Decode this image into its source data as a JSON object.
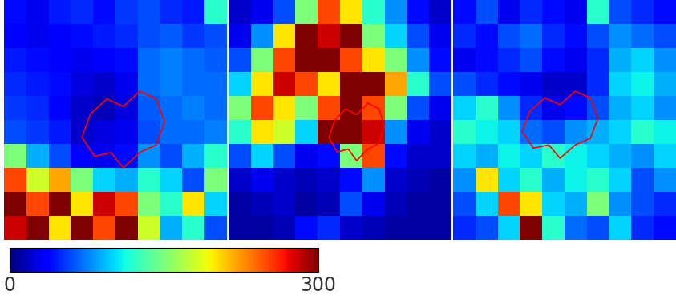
{
  "chart_data": {
    "type": "heatmap",
    "tick_labels": false,
    "panels": [
      {
        "cells": [
          [
            40,
            30,
            45,
            50,
            40,
            55,
            60,
            50,
            45,
            120
          ],
          [
            35,
            30,
            35,
            40,
            45,
            50,
            60,
            65,
            55,
            60
          ],
          [
            45,
            40,
            35,
            30,
            35,
            40,
            70,
            75,
            70,
            65
          ],
          [
            50,
            45,
            40,
            25,
            20,
            30,
            70,
            75,
            70,
            70
          ],
          [
            55,
            50,
            35,
            20,
            15,
            25,
            65,
            70,
            75,
            70
          ],
          [
            60,
            55,
            45,
            20,
            25,
            30,
            60,
            70,
            70,
            75
          ],
          [
            150,
            90,
            60,
            35,
            30,
            40,
            80,
            60,
            90,
            120
          ],
          [
            250,
            180,
            220,
            150,
            100,
            90,
            120,
            100,
            60,
            150
          ],
          [
            300,
            250,
            300,
            200,
            280,
            250,
            150,
            120,
            200,
            100
          ],
          [
            280,
            300,
            200,
            300,
            250,
            300,
            180,
            90,
            120,
            60
          ]
        ]
      },
      {
        "cells": [
          [
            20,
            30,
            60,
            150,
            250,
            200,
            120,
            80,
            40,
            20
          ],
          [
            30,
            80,
            200,
            300,
            280,
            300,
            150,
            100,
            60,
            30
          ],
          [
            60,
            150,
            250,
            300,
            300,
            250,
            200,
            150,
            80,
            40
          ],
          [
            100,
            200,
            280,
            250,
            200,
            300,
            300,
            220,
            120,
            60
          ],
          [
            150,
            250,
            200,
            150,
            250,
            300,
            250,
            150,
            60,
            30
          ],
          [
            120,
            200,
            180,
            100,
            300,
            300,
            280,
            80,
            30,
            20
          ],
          [
            60,
            100,
            60,
            30,
            40,
            150,
            250,
            40,
            20,
            20
          ],
          [
            20,
            30,
            20,
            15,
            20,
            40,
            80,
            20,
            15,
            10
          ],
          [
            10,
            15,
            20,
            10,
            15,
            60,
            30,
            15,
            10,
            10
          ],
          [
            10,
            10,
            15,
            40,
            50,
            20,
            15,
            10,
            10,
            10
          ]
        ]
      },
      {
        "cells": [
          [
            40,
            60,
            30,
            50,
            40,
            30,
            120,
            60,
            50,
            40
          ],
          [
            50,
            40,
            60,
            70,
            50,
            40,
            60,
            80,
            70,
            60
          ],
          [
            30,
            40,
            50,
            60,
            40,
            30,
            50,
            90,
            100,
            80
          ],
          [
            60,
            50,
            40,
            30,
            20,
            20,
            50,
            100,
            110,
            90
          ],
          [
            100,
            120,
            80,
            50,
            30,
            40,
            60,
            90,
            100,
            80
          ],
          [
            120,
            110,
            100,
            70,
            60,
            80,
            90,
            100,
            120,
            110
          ],
          [
            100,
            90,
            110,
            100,
            120,
            110,
            100,
            90,
            80,
            100
          ],
          [
            80,
            200,
            100,
            120,
            90,
            110,
            120,
            100,
            60,
            80
          ],
          [
            60,
            100,
            250,
            200,
            100,
            90,
            150,
            80,
            60,
            50
          ],
          [
            50,
            60,
            100,
            300,
            120,
            70,
            60,
            100,
            50,
            40
          ]
        ]
      }
    ],
    "color_range": [
      0,
      300
    ],
    "color_ticks": [
      0,
      300
    ]
  }
}
